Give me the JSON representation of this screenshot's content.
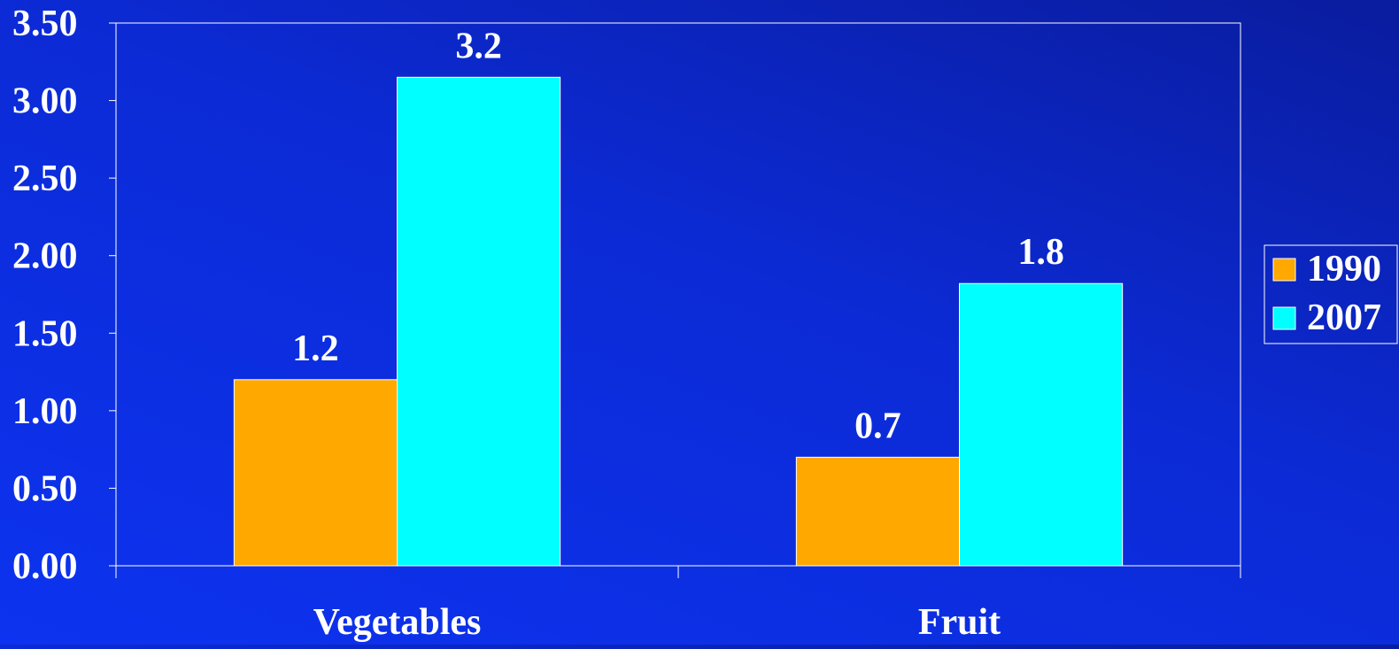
{
  "chart_data": {
    "type": "bar",
    "categories": [
      "Vegetables",
      "Fruit"
    ],
    "series": [
      {
        "name": "1990",
        "values": [
          1.2,
          0.7
        ],
        "labels": [
          "1.2",
          "0.7"
        ],
        "color": "#ffa800"
      },
      {
        "name": "2007",
        "values": [
          3.15,
          1.82
        ],
        "labels": [
          "3.2",
          "1.8"
        ],
        "color": "#00ffff"
      }
    ],
    "y_ticks": [
      "0.00",
      "0.50",
      "1.00",
      "1.50",
      "2.00",
      "2.50",
      "3.00",
      "3.50"
    ],
    "ylim": [
      0,
      3.5
    ],
    "title": "",
    "xlabel": "",
    "ylabel": "",
    "grid": false,
    "legend_position": "right"
  },
  "colors": {
    "background": "#0c2bd6",
    "axis": "#ffffff",
    "text": "#ffffff"
  }
}
